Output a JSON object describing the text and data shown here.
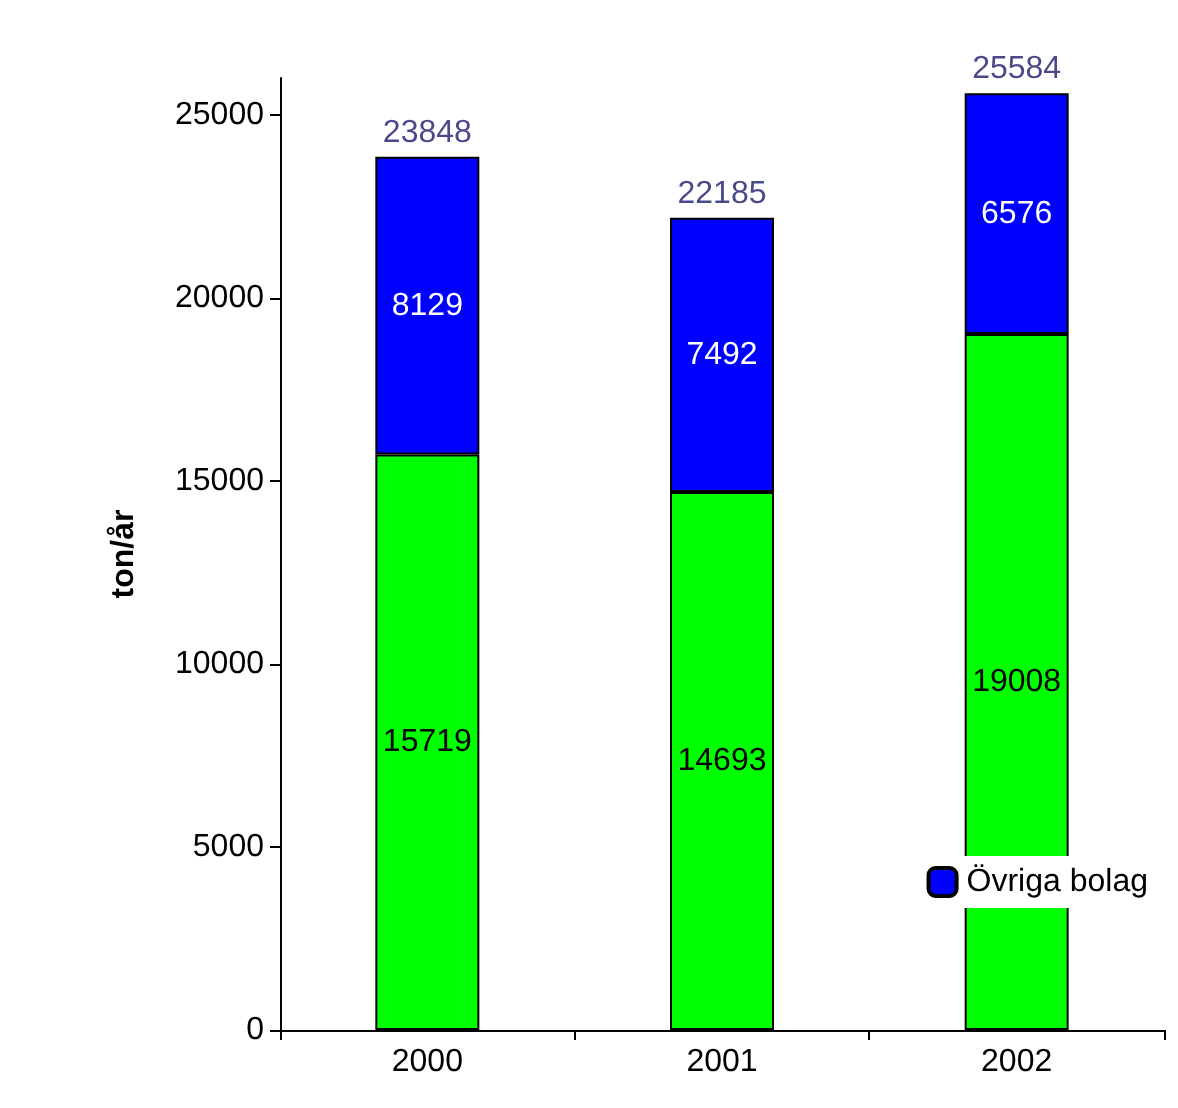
{
  "chart_data": {
    "type": "bar",
    "ylabel": "ton/år",
    "categories": [
      "2000",
      "2001",
      "2002"
    ],
    "stacked": true,
    "data_labels": true,
    "series": [
      {
        "color": "#00ff00",
        "values": [
          15719,
          14693,
          19008
        ]
      },
      {
        "name": "Övriga bolag",
        "color": "#0000ff",
        "values": [
          8129,
          7492,
          6576
        ]
      }
    ],
    "totals": [
      "23848",
      "22185",
      "25584"
    ],
    "ylim": [
      0,
      26000
    ],
    "yticks": [
      0,
      5000,
      10000,
      15000,
      20000,
      25000
    ],
    "grid": false,
    "legend": "bottom right"
  }
}
